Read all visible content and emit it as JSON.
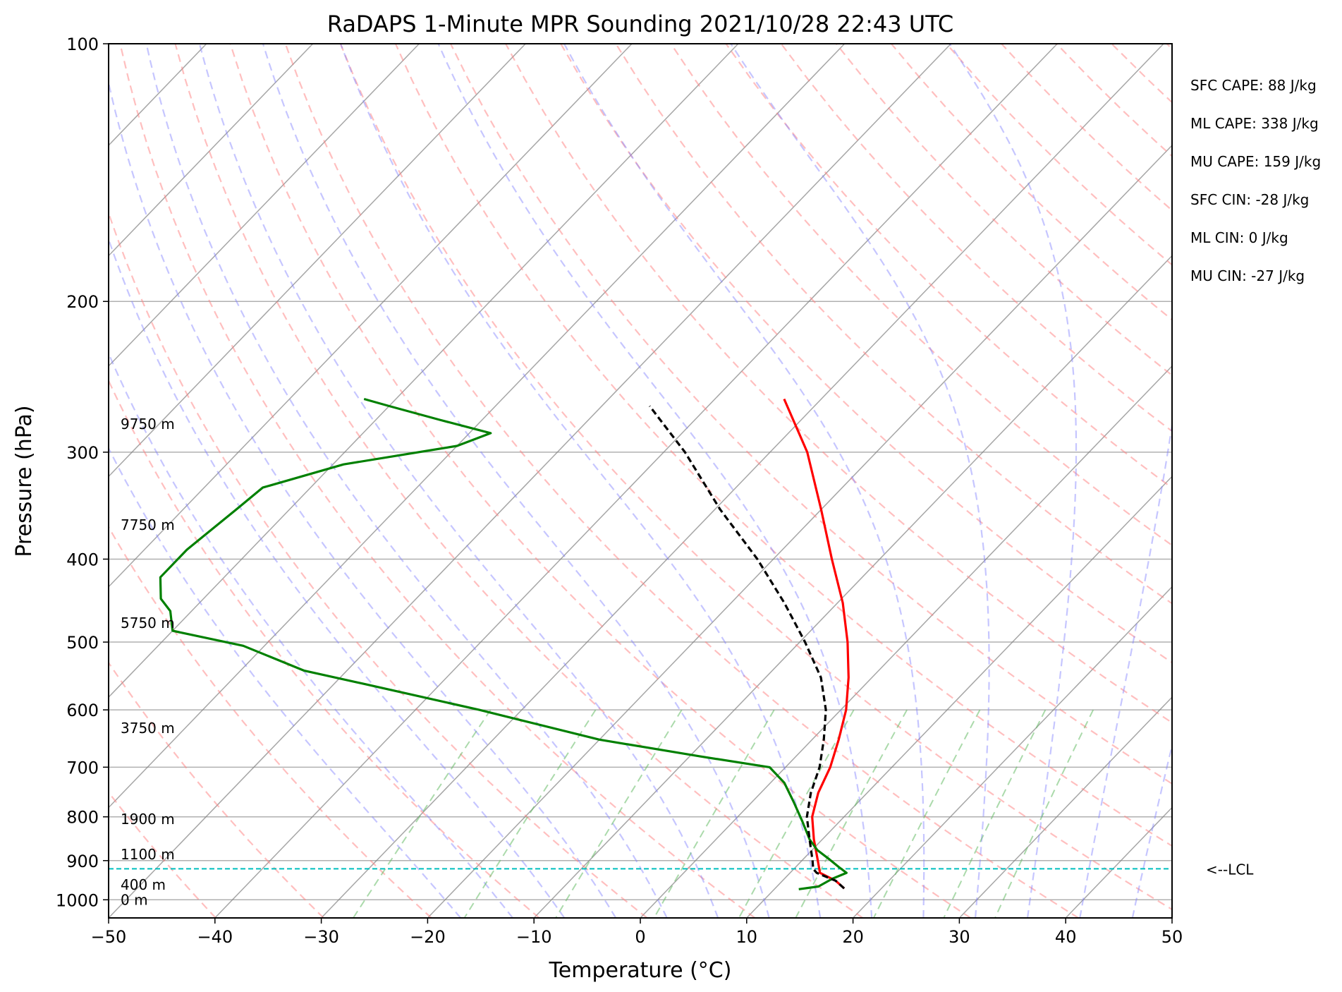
{
  "chart_data": {
    "type": "line",
    "title": "RaDAPS 1-Minute MPR Sounding 2021/10/28 22:43 UTC",
    "xlabel": "Temperature (°C)",
    "ylabel": "Pressure (hPa)",
    "xlim": [
      -50,
      50
    ],
    "ylim": [
      1050,
      100
    ],
    "y_scale": "log",
    "skew_t": true,
    "grid": true,
    "xticks": [
      -50,
      -40,
      -30,
      -20,
      -10,
      0,
      10,
      20,
      30,
      40,
      50
    ],
    "yticks": [
      100,
      200,
      300,
      400,
      500,
      600,
      700,
      800,
      900,
      1000
    ],
    "xtick_labels": [
      "−50",
      "−40",
      "−30",
      "−20",
      "−10",
      "0",
      "10",
      "20",
      "30",
      "40",
      "50"
    ],
    "ytick_labels": [
      "100",
      "200",
      "300",
      "400",
      "500",
      "600",
      "700",
      "800",
      "900",
      "1000"
    ],
    "series": [
      {
        "color": "#ff0000",
        "points": [
          [
            16.5,
            970
          ],
          [
            15,
            950
          ],
          [
            12.8,
            930
          ],
          [
            11.5,
            900
          ],
          [
            9.2,
            850
          ],
          [
            7,
            800
          ],
          [
            5.4,
            750
          ],
          [
            4.2,
            700
          ],
          [
            2.5,
            650
          ],
          [
            0.5,
            600
          ],
          [
            -2.2,
            550
          ],
          [
            -5.5,
            500
          ],
          [
            -9.5,
            450
          ],
          [
            -14.5,
            400
          ],
          [
            -20,
            350
          ],
          [
            -26.5,
            300
          ],
          [
            -33.5,
            260
          ]
        ]
      },
      {
        "color": "#008000",
        "points": [
          [
            12.3,
            972
          ],
          [
            13.9,
            965
          ],
          [
            14.5,
            945
          ],
          [
            15.3,
            930
          ],
          [
            14,
            915
          ],
          [
            12.3,
            895
          ],
          [
            10.5,
            875
          ],
          [
            8.8,
            850
          ],
          [
            6.5,
            810
          ],
          [
            4,
            770
          ],
          [
            1.3,
            730
          ],
          [
            -1.5,
            700
          ],
          [
            -9,
            680
          ],
          [
            -20,
            650
          ],
          [
            -34,
            600
          ],
          [
            -47,
            560
          ],
          [
            -54,
            540
          ],
          [
            -62,
            505
          ],
          [
            -70,
            485
          ],
          [
            -72,
            460
          ],
          [
            -74,
            445
          ],
          [
            -76,
            420
          ],
          [
            -76,
            390
          ],
          [
            -75,
            350
          ],
          [
            -74.5,
            330
          ],
          [
            -69,
            310
          ],
          [
            -60,
            295
          ],
          [
            -58,
            285
          ],
          [
            -64,
            275
          ],
          [
            -70,
            265
          ],
          [
            -73,
            260
          ]
        ]
      },
      {
        "color": "#000000",
        "points": [
          [
            16.5,
            970
          ],
          [
            15,
            950
          ],
          [
            12.5,
            930
          ],
          [
            11.8,
            920
          ],
          [
            11,
            900
          ],
          [
            8.8,
            850
          ],
          [
            6.5,
            800
          ],
          [
            4.7,
            750
          ],
          [
            3.2,
            700
          ],
          [
            1.1,
            650
          ],
          [
            -1.4,
            600
          ],
          [
            -4.8,
            550
          ],
          [
            -9.5,
            500
          ],
          [
            -15,
            450
          ],
          [
            -21.5,
            400
          ],
          [
            -29.5,
            350
          ],
          [
            -38,
            300
          ],
          [
            -45.5,
            265
          ]
        ]
      }
    ],
    "lcl": {
      "pressure": 920,
      "label": "<--LCL",
      "color": "#00bfbf"
    },
    "height_labels": [
      {
        "text": "0 m",
        "pressure": 1000
      },
      {
        "text": "400 m",
        "pressure": 960
      },
      {
        "text": "1100 m",
        "pressure": 885
      },
      {
        "text": "1900 m",
        "pressure": 805
      },
      {
        "text": "3750 m",
        "pressure": 630
      },
      {
        "text": "5750 m",
        "pressure": 475
      },
      {
        "text": "7750 m",
        "pressure": 365
      },
      {
        "text": "9750 m",
        "pressure": 278
      }
    ],
    "indices": [
      "SFC CAPE: 88 J/kg",
      "ML CAPE: 338 J/kg",
      "MU CAPE: 159 J/kg",
      "SFC CIN: -28 J/kg",
      "ML CIN: 0 J/kg",
      "MU CIN: -27 J/kg"
    ],
    "background_lines": {
      "dry_adiabats": "#ff8080",
      "moist_adiabats": "#8080ff",
      "mixing_ratio": "#66bb66",
      "isotherms": "#808080"
    }
  }
}
